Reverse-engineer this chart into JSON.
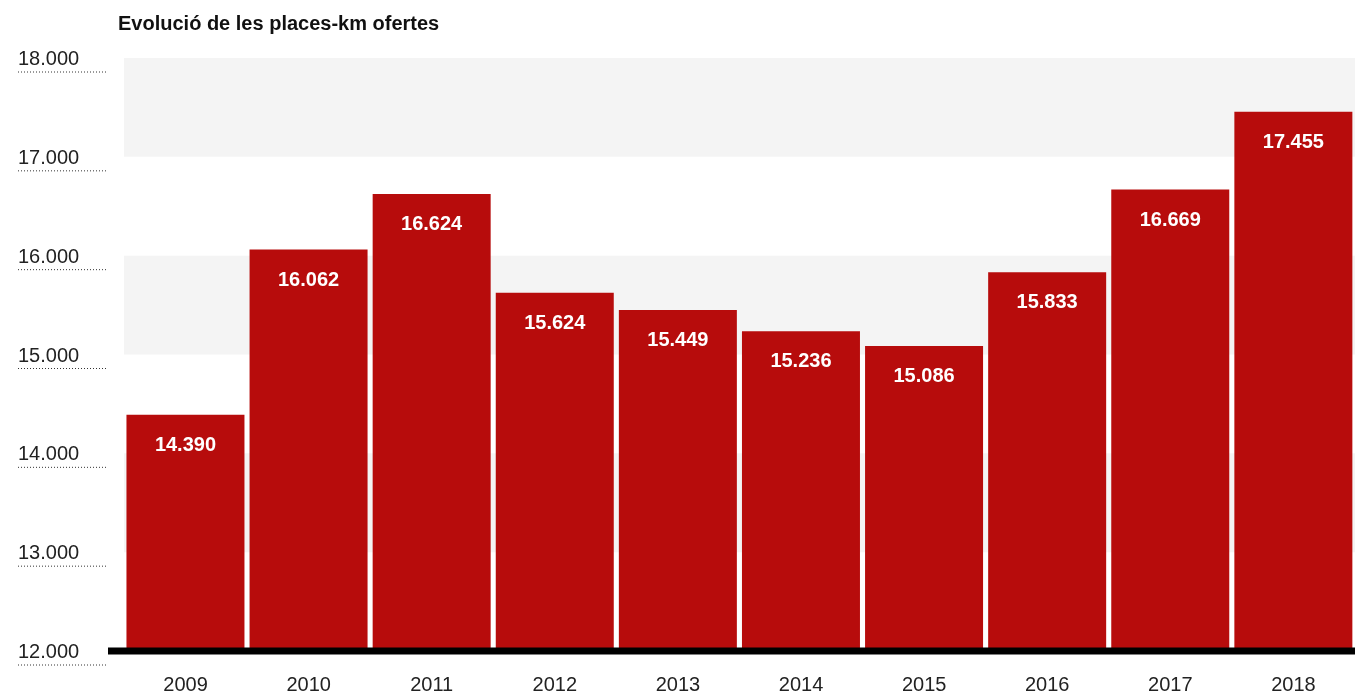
{
  "chart_data": {
    "type": "bar",
    "title": "Evolució de les places-km ofertes",
    "categories": [
      "2009",
      "2010",
      "2011",
      "2012",
      "2013",
      "2014",
      "2015",
      "2016",
      "2017",
      "2018"
    ],
    "values": [
      14390,
      16062,
      16624,
      15624,
      15449,
      15236,
      15086,
      15833,
      16669,
      17455
    ],
    "value_labels": [
      "14.390",
      "16.062",
      "16.624",
      "15.624",
      "15.449",
      "15.236",
      "15.086",
      "15.833",
      "16.669",
      "17.455"
    ],
    "color": "#b70c0c",
    "ylim": [
      12000,
      18000
    ],
    "yticks": [
      {
        "value": 12000,
        "label": "12.000"
      },
      {
        "value": 13000,
        "label": "13.000"
      },
      {
        "value": 14000,
        "label": "14.000"
      },
      {
        "value": 15000,
        "label": "15.000"
      },
      {
        "value": 16000,
        "label": "16.000"
      },
      {
        "value": 17000,
        "label": "17.000"
      },
      {
        "value": 18000,
        "label": "18.000"
      }
    ],
    "bands": [
      {
        "axis": "y",
        "from": 17000,
        "to": 18000,
        "color": "#f4f4f4"
      },
      {
        "axis": "y",
        "from": 15000,
        "to": 16000,
        "color": "#f4f4f4"
      },
      {
        "axis": "y",
        "from": 13000,
        "to": 14000,
        "color": "#f4f4f4"
      }
    ]
  }
}
